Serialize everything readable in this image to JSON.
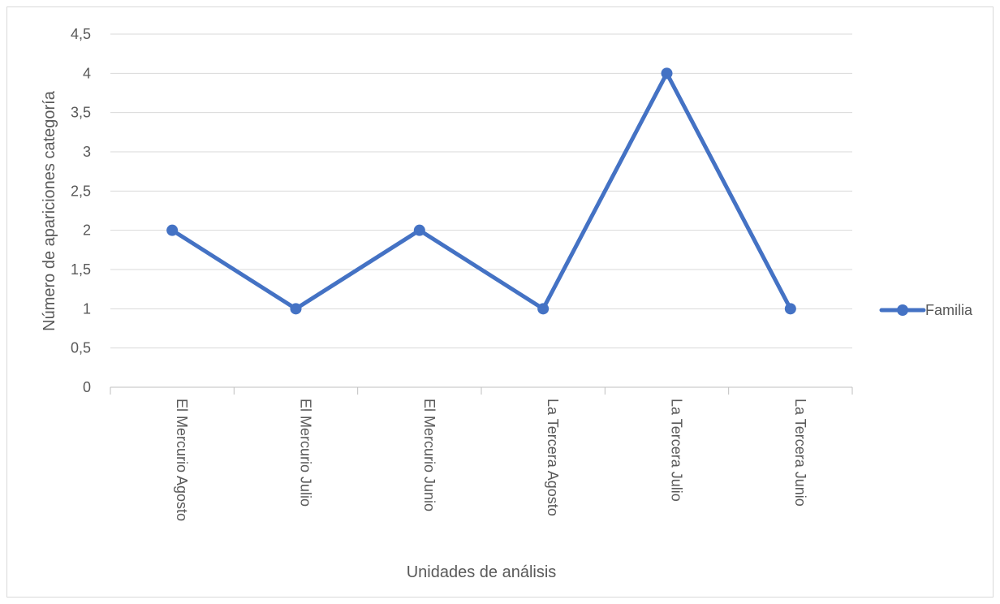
{
  "chart_data": {
    "type": "line",
    "categories": [
      "El Mercurio Agosto",
      "El Mercurio Julio",
      "El Mercurio Junio",
      "La Tercera Agosto",
      "La Tercera Julio",
      "La Tercera Junio"
    ],
    "series": [
      {
        "name": "Familia",
        "values": [
          2,
          1,
          2,
          1,
          4,
          1
        ],
        "color": "#4472c4"
      }
    ],
    "xlabel": "Unidades de análisis",
    "ylabel": "Número de apariciones categoría",
    "ylim": [
      0,
      4.5
    ],
    "yticks": [
      0,
      0.5,
      1,
      1.5,
      2,
      2.5,
      3,
      3.5,
      4,
      4.5
    ],
    "ytick_labels": [
      "0",
      "0,5",
      "1",
      "1,5",
      "2",
      "2,5",
      "3",
      "3,5",
      "4",
      "4,5"
    ],
    "grid": true,
    "legend_position": "right",
    "colors": {
      "gridline": "#d9d9d9",
      "axis": "#bfbfbf",
      "text": "#595959"
    }
  }
}
